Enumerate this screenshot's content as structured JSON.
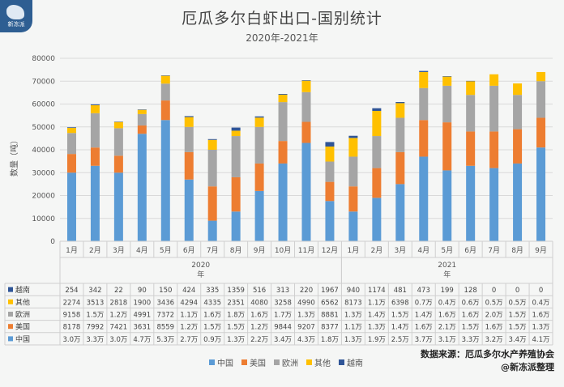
{
  "logo_text": "新冻派",
  "chart_data": {
    "type": "bar",
    "stacked": true,
    "title": "厄瓜多尔白虾出口-国别统计",
    "subtitle": "2020年-2021年",
    "ylabel": "数量（吨）",
    "ylim": [
      0,
      80000
    ],
    "yticks": [
      0,
      10000,
      20000,
      30000,
      40000,
      50000,
      60000,
      70000,
      80000
    ],
    "grid": true,
    "legend_position": "bottom",
    "categories": [
      "1月",
      "2月",
      "3月",
      "4月",
      "5月",
      "6月",
      "7月",
      "8月",
      "9月",
      "10月",
      "11月",
      "12月",
      "1月",
      "2月",
      "3月",
      "4月",
      "5月",
      "6月",
      "7月",
      "8月",
      "9月"
    ],
    "groups": [
      {
        "label": "2020",
        "sublabel": "年",
        "count": 12
      },
      {
        "label": "2021",
        "sublabel": "年",
        "count": 9
      }
    ],
    "series": [
      {
        "name": "中国",
        "color": "#5b9bd5",
        "values": [
          30000,
          33000,
          30000,
          47000,
          53000,
          27000,
          9000,
          13000,
          22000,
          34000,
          43000,
          17600,
          13000,
          19000,
          25000,
          37000,
          31000,
          33000,
          32000,
          34000,
          41000
        ],
        "labels": [
          "3.0万",
          "3.3万",
          "3.0万",
          "4.7万",
          "5.3万",
          "2.7万",
          "0.9万",
          "1.3万",
          "2.2万",
          "3.4万",
          "4.3万",
          "1.8万",
          "1.3万",
          "1.9万",
          "2.5万",
          "3.7万",
          "3.1万",
          "3.3万",
          "3.2万",
          "3.4万",
          "4.1万"
        ]
      },
      {
        "name": "美国",
        "color": "#ed7d31",
        "values": [
          8178,
          7992,
          7421,
          3631,
          8559,
          12000,
          15000,
          15000,
          12000,
          9844,
          9207,
          8377,
          11000,
          13000,
          14000,
          16000,
          21000,
          15000,
          16000,
          15000,
          13000
        ],
        "labels": [
          "8178",
          "7992",
          "7421",
          "3631",
          "8559",
          "1.2万",
          "1.5万",
          "1.5万",
          "1.2万",
          "9844",
          "9207",
          "8377",
          "1.1万",
          "1.3万",
          "1.4万",
          "1.6万",
          "2.1万",
          "1.5万",
          "1.6万",
          "1.5万",
          "1.3万"
        ]
      },
      {
        "name": "欧洲",
        "color": "#a5a5a5",
        "values": [
          9158,
          15000,
          12000,
          4991,
          7372,
          11000,
          16000,
          18000,
          16000,
          17000,
          13000,
          8881,
          13000,
          14000,
          15000,
          14000,
          16000,
          16000,
          20000,
          15000,
          16000
        ],
        "labels": [
          "9158",
          "1.5万",
          "1.2万",
          "4991",
          "7372",
          "1.1万",
          "1.6万",
          "1.8万",
          "1.6万",
          "1.7万",
          "1.3万",
          "8881",
          "1.3万",
          "1.4万",
          "1.5万",
          "1.4万",
          "1.6万",
          "1.6万",
          "2.0万",
          "1.5万",
          "1.6万"
        ]
      },
      {
        "name": "其他",
        "color": "#ffc000",
        "values": [
          2274,
          3513,
          2818,
          1900,
          3436,
          4294,
          4335,
          2351,
          4080,
          3258,
          4990,
          6562,
          8173,
          11000,
          6398,
          7000,
          4000,
          6000,
          5000,
          5000,
          4000
        ],
        "labels": [
          "2274",
          "3513",
          "2818",
          "1900",
          "3436",
          "4294",
          "4335",
          "2351",
          "4080",
          "3258",
          "4990",
          "6562",
          "8173",
          "1.1万",
          "6398",
          "0.7万",
          "0.4万",
          "0.6万",
          "0.5万",
          "0.5万",
          "0.4万"
        ]
      },
      {
        "name": "越南",
        "color": "#2f5597",
        "values": [
          254,
          342,
          22,
          90,
          150,
          424,
          335,
          1359,
          516,
          313,
          220,
          1967,
          940,
          1174,
          481,
          473,
          199,
          128,
          0,
          0,
          0
        ],
        "labels": [
          "254",
          "342",
          "22",
          "90",
          "150",
          "424",
          "335",
          "1359",
          "516",
          "313",
          "220",
          "1967",
          "940",
          "1174",
          "481",
          "473",
          "199",
          "128",
          "0",
          "0",
          "0"
        ]
      }
    ]
  },
  "source": {
    "line1": "数据来源：厄瓜多尔水产养殖协会",
    "line2": "@新冻派整理"
  }
}
